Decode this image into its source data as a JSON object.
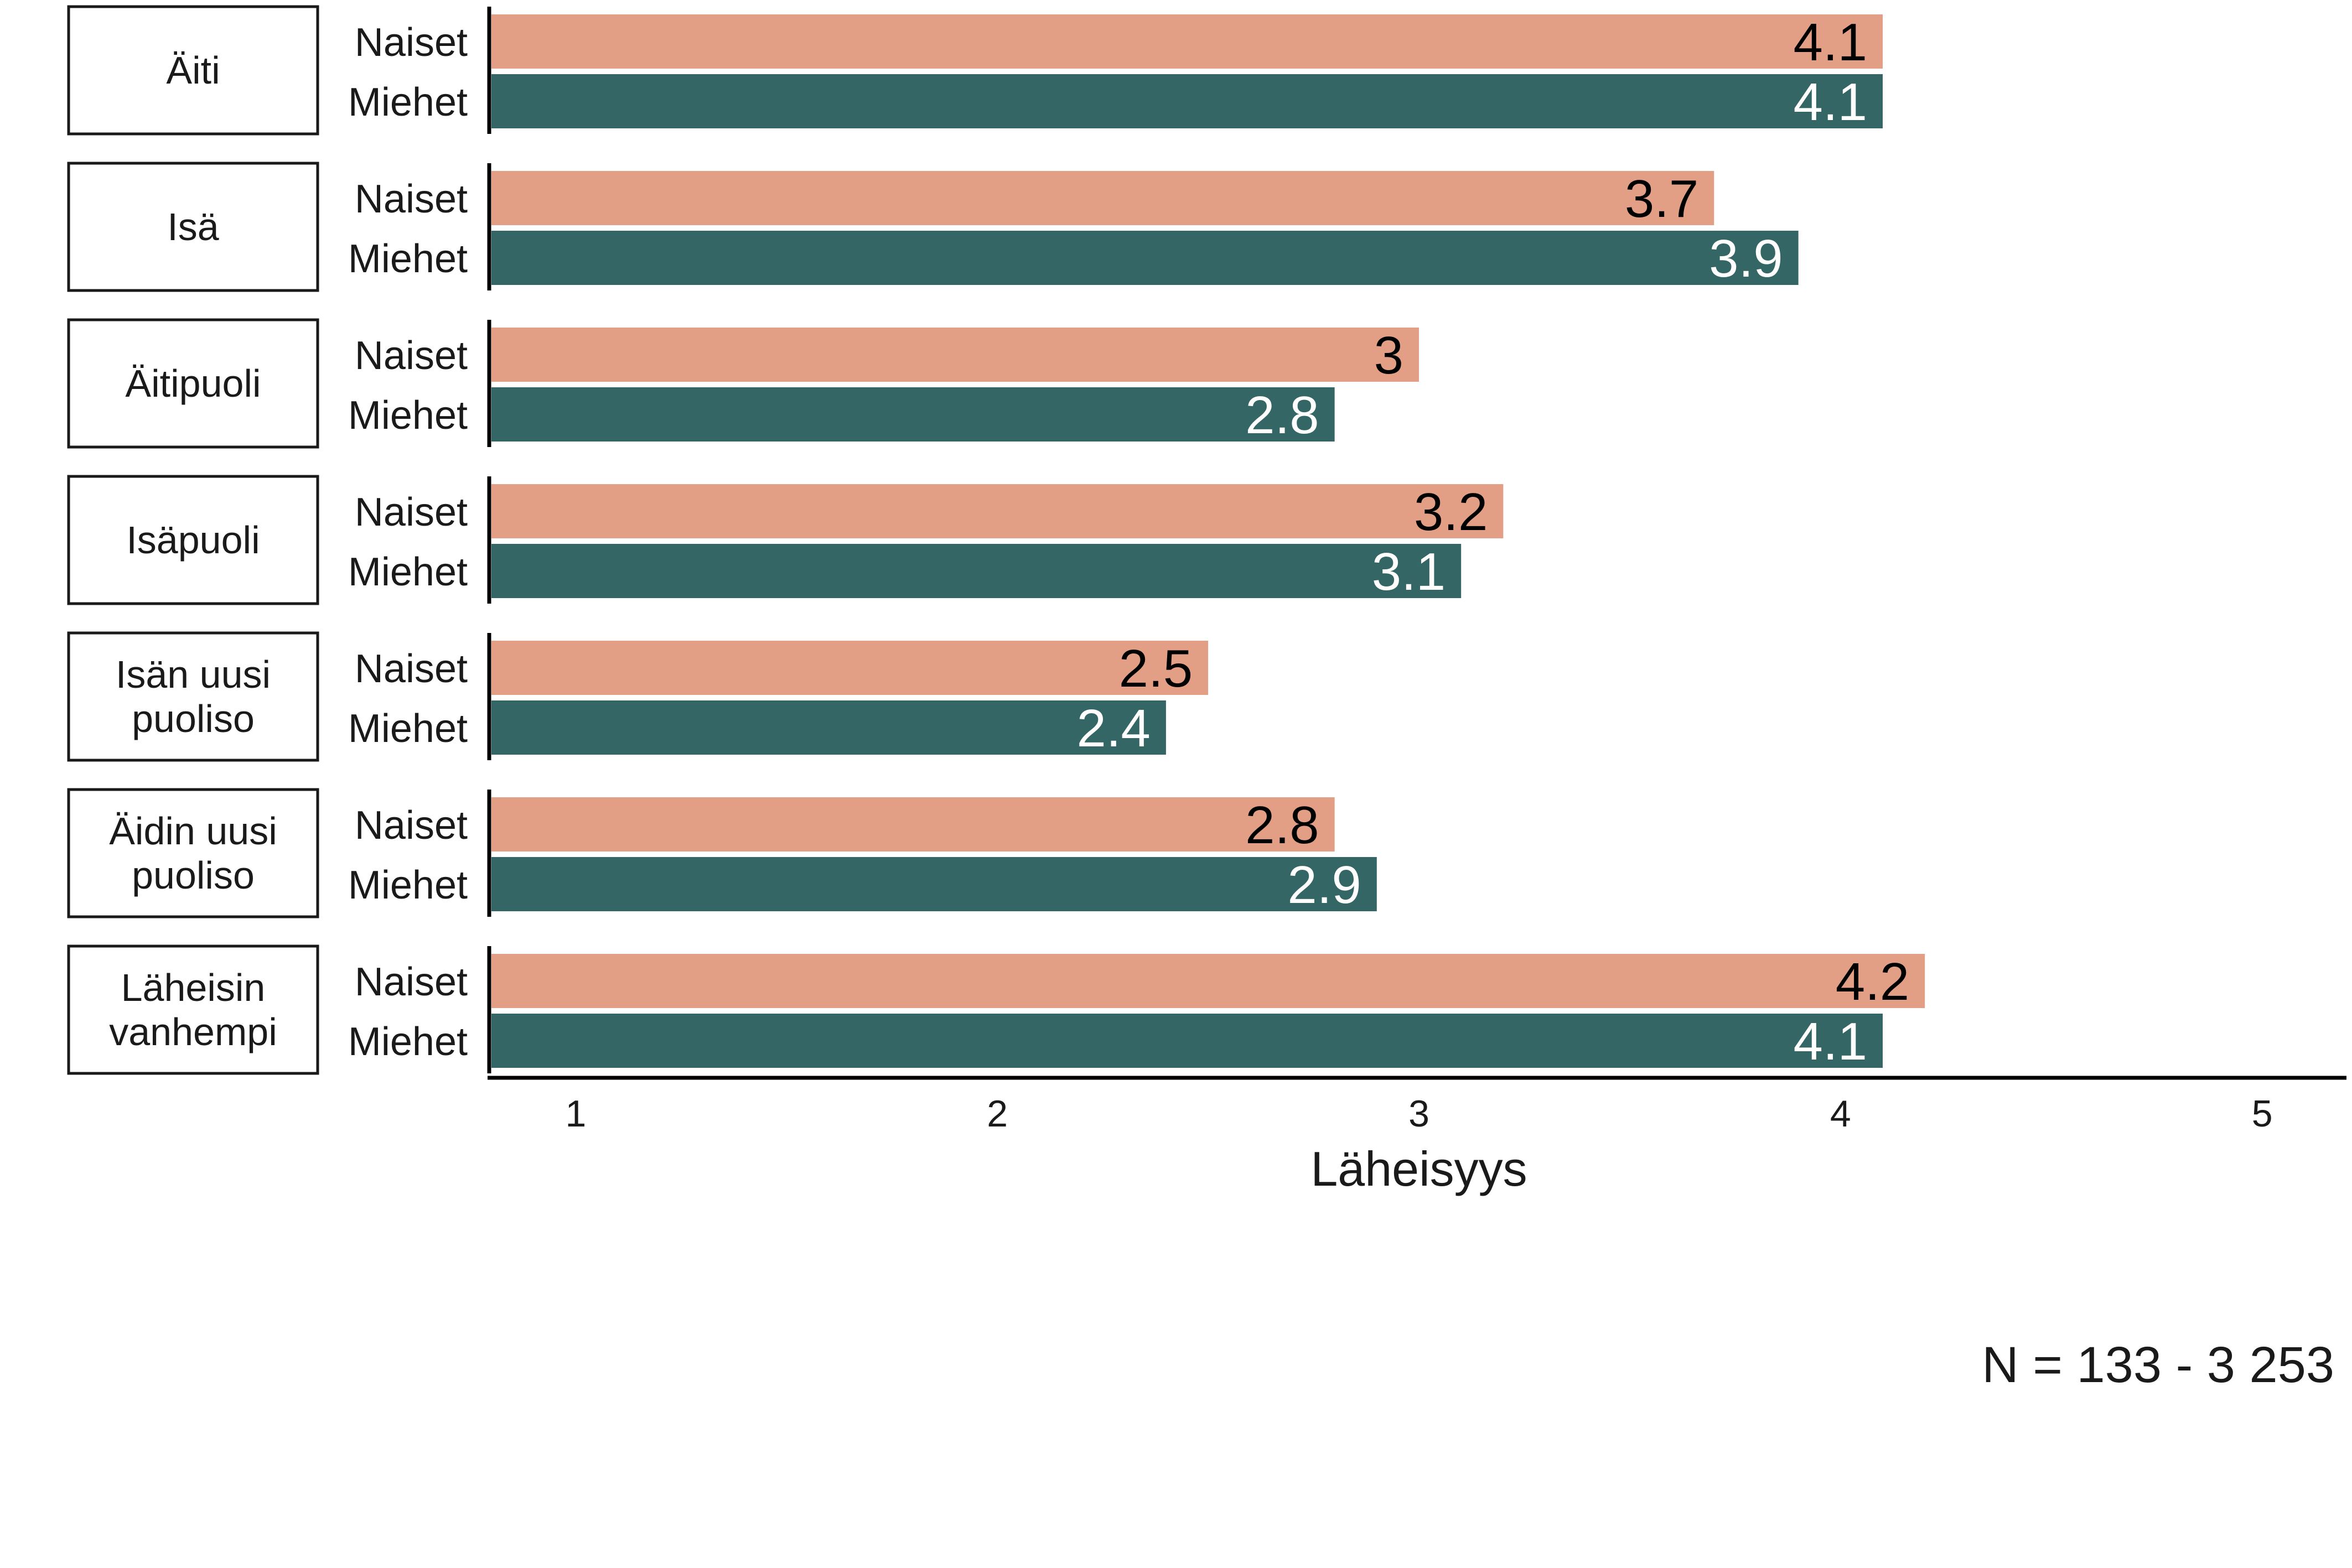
{
  "chart_data": {
    "type": "bar",
    "orientation": "horizontal",
    "categories": [
      "Äiti",
      "Isä",
      "Äitipuoli",
      "Isäpuoli",
      "Isän uusi puoliso",
      "Äidin uusi puoliso",
      "Läheisin vanhempi"
    ],
    "category_lines": [
      [
        "Äiti"
      ],
      [
        "Isä"
      ],
      [
        "Äitipuoli"
      ],
      [
        "Isäpuoli"
      ],
      [
        "Isän uusi",
        "puoliso"
      ],
      [
        "Äidin uusi",
        "puoliso"
      ],
      [
        "Läheisin",
        "vanhempi"
      ]
    ],
    "series": [
      {
        "name": "Naiset",
        "color": "#E39E86",
        "label_color": "#000000",
        "values": [
          4.1,
          3.7,
          3.0,
          3.2,
          2.5,
          2.8,
          4.2
        ],
        "labels": [
          "4.1",
          "3.7",
          "3",
          "3.2",
          "2.5",
          "2.8",
          "4.2"
        ]
      },
      {
        "name": "Miehet",
        "color": "#336664",
        "label_color": "#ffffff",
        "values": [
          4.1,
          3.9,
          2.8,
          3.1,
          2.4,
          2.9,
          4.1
        ],
        "labels": [
          "4.1",
          "3.9",
          "2.8",
          "3.1",
          "2.4",
          "2.9",
          "4.1"
        ]
      }
    ],
    "xlabel": "Läheisyys",
    "xlim": [
      0.8,
      5.2
    ],
    "xticks": [
      1,
      2,
      3,
      4,
      5
    ],
    "xtick_labels": [
      "1",
      "2",
      "3",
      "4",
      "5"
    ],
    "grid": false,
    "legend": "none",
    "note": "N = 133 - 3 253"
  }
}
